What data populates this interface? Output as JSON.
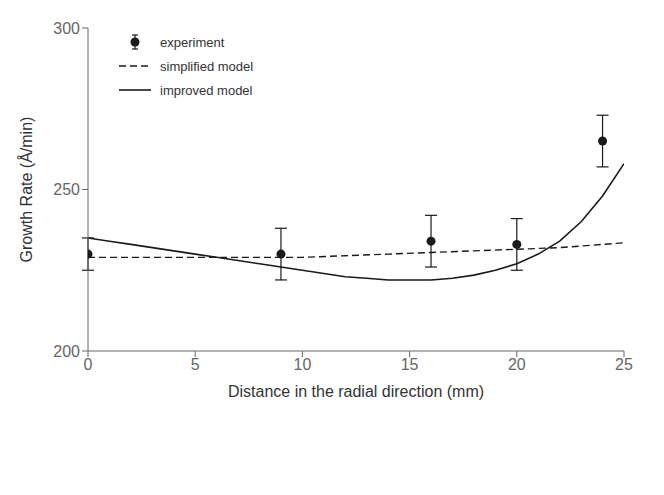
{
  "chart_data": {
    "type": "line",
    "xlabel": "Distance in the radial direction (mm)",
    "ylabel": "Growth Rate (Å/min)",
    "xlim": [
      0,
      25
    ],
    "ylim": [
      200,
      300
    ],
    "xticks": [
      0,
      5,
      10,
      15,
      20,
      25
    ],
    "yticks": [
      200,
      250,
      300
    ],
    "grid": false,
    "legend": "upper left",
    "series": [
      {
        "name": "experiment",
        "type": "scatter",
        "marker": "circle",
        "color": "#1a1a1a",
        "x": [
          0,
          9,
          16,
          20,
          24
        ],
        "values": [
          230,
          230,
          234,
          233,
          265
        ],
        "error_lo": [
          5,
          8,
          8,
          8,
          8
        ],
        "error_hi": [
          5,
          8,
          8,
          8,
          8
        ]
      },
      {
        "name": "simplified model",
        "type": "line",
        "line_style": "dashed",
        "color": "#1a1a1a",
        "x": [
          0,
          2,
          4,
          6,
          8,
          10,
          12,
          14,
          16,
          18,
          20,
          22,
          24,
          25
        ],
        "values": [
          229,
          229,
          229,
          229,
          229,
          229,
          229.5,
          230,
          230.5,
          231,
          231.5,
          232,
          233,
          233.5
        ]
      },
      {
        "name": "improved model",
        "type": "line",
        "line_style": "solid",
        "color": "#1a1a1a",
        "x": [
          0,
          1,
          2,
          3,
          4,
          5,
          6,
          7,
          8,
          9,
          10,
          11,
          12,
          13,
          14,
          15,
          16,
          17,
          18,
          19,
          20,
          21,
          22,
          23,
          24,
          25
        ],
        "values": [
          235,
          234,
          233,
          232,
          231,
          230,
          229,
          228,
          227,
          226,
          225,
          224,
          223,
          222.5,
          222,
          222,
          222,
          222.5,
          223.5,
          225,
          227,
          230,
          234,
          240,
          248,
          258
        ]
      }
    ]
  }
}
